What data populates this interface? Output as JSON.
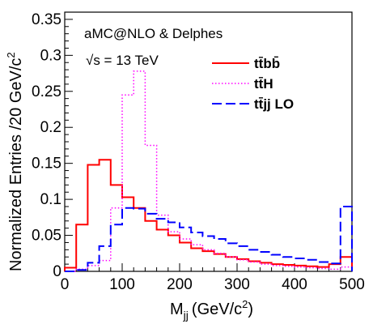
{
  "chart_data": {
    "type": "line",
    "style": "step-histogram",
    "xlabel": "M",
    "xlabel_sub": "jj",
    "xlabel_unit": "(GeV/c",
    "xlabel_unit_sup": "2",
    "xlabel_unit_end": ")",
    "ylabel": "Normalized Entries /20 GeV/c",
    "ylabel_sup": "2",
    "xlim": [
      0,
      500
    ],
    "ylim": [
      0,
      0.36
    ],
    "xticks": [
      0,
      100,
      200,
      300,
      400,
      500
    ],
    "xtick_labels": [
      "0",
      "100",
      "200",
      "300",
      "400",
      "500"
    ],
    "yticks": [
      0,
      0.05,
      0.1,
      0.15,
      0.2,
      0.25,
      0.3,
      0.35
    ],
    "ytick_labels": [
      "0",
      "0.05",
      "0.1",
      "0.15",
      "0.2",
      "0.25",
      "0.3",
      "0.35"
    ],
    "grid": false,
    "legend_position": "top-right",
    "annotations": [
      "aMC@NLO & Delphes",
      "√s = 13 TeV"
    ],
    "bin_edges": [
      0,
      20,
      40,
      60,
      80,
      100,
      120,
      140,
      160,
      180,
      200,
      220,
      240,
      260,
      280,
      300,
      320,
      340,
      360,
      380,
      400,
      420,
      440,
      460,
      480,
      500
    ],
    "series": [
      {
        "name": "tt̄bb̄",
        "color": "#ff0000",
        "dash": "solid",
        "values": [
          0.005,
          0.065,
          0.148,
          0.155,
          0.12,
          0.103,
          0.088,
          0.07,
          0.058,
          0.05,
          0.04,
          0.032,
          0.028,
          0.024,
          0.02,
          0.017,
          0.014,
          0.012,
          0.01,
          0.009,
          0.008,
          0.007,
          0.006,
          0.01,
          0.02
        ]
      },
      {
        "name": "tt̄H",
        "color": "#ff00ff",
        "dash": "dotted",
        "values": [
          0.0,
          0.003,
          0.008,
          0.015,
          0.088,
          0.245,
          0.278,
          0.175,
          0.078,
          0.055,
          0.045,
          0.037,
          0.03,
          0.025,
          0.02,
          0.016,
          0.013,
          0.01,
          0.008,
          0.007,
          0.006,
          0.005,
          0.004,
          0.003,
          0.006
        ]
      },
      {
        "name": "tt̄jj LO",
        "color": "#0000ff",
        "dash": "dashed",
        "values": [
          0.0,
          0.002,
          0.012,
          0.035,
          0.065,
          0.088,
          0.087,
          0.08,
          0.073,
          0.068,
          0.061,
          0.054,
          0.049,
          0.045,
          0.039,
          0.035,
          0.03,
          0.027,
          0.023,
          0.02,
          0.018,
          0.016,
          0.013,
          0.011,
          0.09
        ]
      }
    ],
    "legend_entries": [
      {
        "label": "tt̄bb̄",
        "series": 0
      },
      {
        "label": "tt̄H",
        "series": 1
      },
      {
        "label": "tt̄jj LO",
        "series": 2
      }
    ]
  }
}
